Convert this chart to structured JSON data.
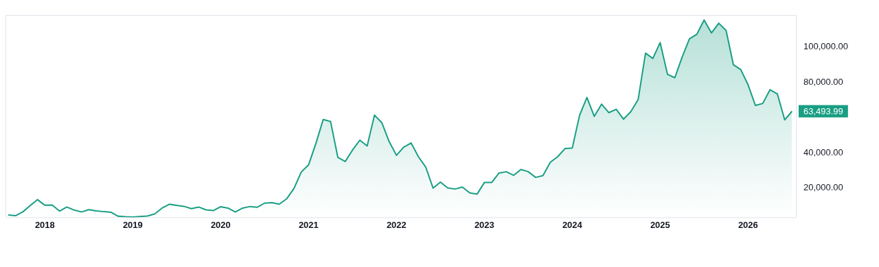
{
  "chart_data": {
    "type": "area",
    "x": [
      "2017-08",
      "2017-09",
      "2017-10",
      "2017-11",
      "2017-12",
      "2018-01",
      "2018-02",
      "2018-03",
      "2018-04",
      "2018-05",
      "2018-06",
      "2018-07",
      "2018-08",
      "2018-09",
      "2018-10",
      "2018-11",
      "2018-12",
      "2019-01",
      "2019-02",
      "2019-03",
      "2019-04",
      "2019-05",
      "2019-06",
      "2019-07",
      "2019-08",
      "2019-09",
      "2019-10",
      "2019-11",
      "2019-12",
      "2020-01",
      "2020-02",
      "2020-03",
      "2020-04",
      "2020-05",
      "2020-06",
      "2020-07",
      "2020-08",
      "2020-09",
      "2020-10",
      "2020-11",
      "2020-12",
      "2021-01",
      "2021-02",
      "2021-03",
      "2021-04",
      "2021-05",
      "2021-06",
      "2021-07",
      "2021-08",
      "2021-09",
      "2021-10",
      "2021-11",
      "2021-12",
      "2022-01",
      "2022-02",
      "2022-03",
      "2022-04",
      "2022-05",
      "2022-06",
      "2022-07",
      "2022-08",
      "2022-09",
      "2022-10",
      "2022-11",
      "2022-12",
      "2023-01",
      "2023-02",
      "2023-03",
      "2023-04",
      "2023-05",
      "2023-06",
      "2023-07",
      "2023-08",
      "2023-09",
      "2023-10",
      "2023-11",
      "2023-12",
      "2024-01",
      "2024-02",
      "2024-03",
      "2024-04",
      "2024-05",
      "2024-06",
      "2024-07",
      "2024-08",
      "2024-09",
      "2024-10",
      "2024-11",
      "2024-12",
      "2025-01",
      "2025-02",
      "2025-03",
      "2025-04",
      "2025-05",
      "2025-06",
      "2025-07",
      "2025-08",
      "2025-09",
      "2025-10",
      "2025-11",
      "2025-12",
      "2026-01",
      "2026-02",
      "2026-03",
      "2026-04",
      "2026-05",
      "2026-06",
      "2026-07"
    ],
    "values": [
      4700,
      4300,
      6500,
      10000,
      13400,
      10200,
      10300,
      6900,
      9200,
      7500,
      6400,
      7700,
      7000,
      6600,
      6300,
      4000,
      3700,
      3500,
      3800,
      4100,
      5300,
      8600,
      10800,
      10100,
      9600,
      8300,
      9200,
      7600,
      7200,
      9400,
      8600,
      6400,
      8600,
      9500,
      9100,
      11400,
      11700,
      10800,
      13800,
      19700,
      29000,
      33100,
      45200,
      58800,
      57700,
      37300,
      35000,
      41500,
      47100,
      43800,
      61300,
      57000,
      46300,
      38500,
      43200,
      45500,
      37700,
      31800,
      19900,
      23300,
      20000,
      19400,
      20500,
      17200,
      16500,
      23100,
      23100,
      28500,
      29200,
      27200,
      30500,
      29200,
      26000,
      27000,
      34600,
      37700,
      42300,
      42600,
      61200,
      71300,
      60600,
      67500,
      62700,
      64600,
      59000,
      63300,
      70200,
      96400,
      93400,
      102400,
      84400,
      82500,
      94200,
      104600,
      107100,
      115200,
      107900,
      113400,
      109300,
      89800,
      87100,
      78500,
      66800,
      67900,
      75700,
      73300,
      58600,
      63493.99
    ],
    "color": "#189e83",
    "xlim": [
      "2017-07-20",
      "2026-07-20"
    ],
    "xticks": [
      "2018",
      "2019",
      "2020",
      "2021",
      "2022",
      "2023",
      "2024",
      "2025",
      "2026"
    ],
    "ylim": [
      3000,
      118000
    ],
    "yticks": [
      {
        "value": 20000,
        "label": "20,000.00"
      },
      {
        "value": 40000,
        "label": "40,000.00"
      },
      {
        "value": 80000,
        "label": "80,000.00"
      },
      {
        "value": 100000,
        "label": "100,000.00"
      }
    ],
    "annotations": [
      {
        "text": "63,493.99",
        "x": "2026-07",
        "y": 63493.99
      }
    ]
  }
}
